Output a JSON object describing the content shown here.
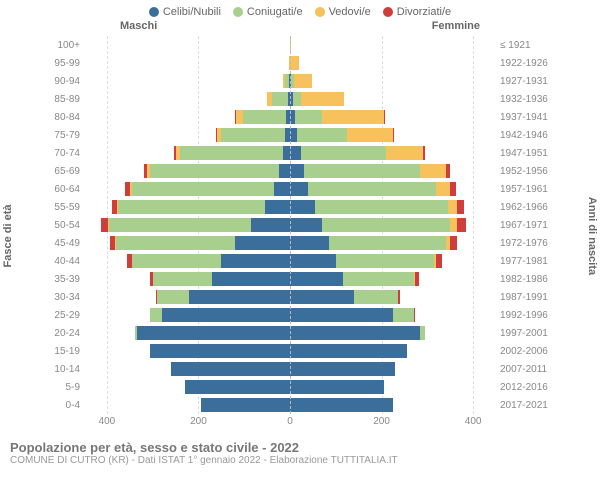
{
  "legend": [
    {
      "label": "Celibi/Nubili",
      "color": "#3b6e9a"
    },
    {
      "label": "Coniugati/e",
      "color": "#a9cf8f"
    },
    {
      "label": "Vedovi/e",
      "color": "#f7c15b"
    },
    {
      "label": "Divorziati/e",
      "color": "#d03d3d"
    }
  ],
  "headers": {
    "male": "Maschi",
    "female": "Femmine"
  },
  "ylabels": {
    "left": "Fasce di età",
    "right": "Anni di nascita"
  },
  "xaxis": {
    "ticks": [
      "400",
      "200",
      "0",
      "200",
      "400"
    ],
    "max": 450
  },
  "colors": {
    "celibe": "#3b6e9a",
    "coniugato": "#a9cf8f",
    "vedovo": "#f7c15b",
    "divorziato": "#d03d3d"
  },
  "rows": [
    {
      "age": "100+",
      "year": "≤ 1921",
      "m": [
        0,
        0,
        0,
        0
      ],
      "f": [
        0,
        0,
        2,
        0
      ]
    },
    {
      "age": "95-99",
      "year": "1922-1926",
      "m": [
        0,
        1,
        2,
        0
      ],
      "f": [
        0,
        1,
        18,
        0
      ]
    },
    {
      "age": "90-94",
      "year": "1927-1931",
      "m": [
        2,
        8,
        5,
        0
      ],
      "f": [
        2,
        6,
        40,
        0
      ]
    },
    {
      "age": "85-89",
      "year": "1932-1936",
      "m": [
        5,
        35,
        10,
        0
      ],
      "f": [
        6,
        18,
        95,
        0
      ]
    },
    {
      "age": "80-84",
      "year": "1937-1941",
      "m": [
        8,
        95,
        15,
        2
      ],
      "f": [
        10,
        60,
        135,
        2
      ]
    },
    {
      "age": "75-79",
      "year": "1942-1946",
      "m": [
        10,
        140,
        10,
        2
      ],
      "f": [
        15,
        110,
        100,
        3
      ]
    },
    {
      "age": "70-74",
      "year": "1947-1951",
      "m": [
        15,
        225,
        10,
        4
      ],
      "f": [
        25,
        185,
        80,
        5
      ]
    },
    {
      "age": "65-69",
      "year": "1952-1956",
      "m": [
        25,
        280,
        8,
        6
      ],
      "f": [
        30,
        255,
        55,
        10
      ]
    },
    {
      "age": "60-64",
      "year": "1957-1961",
      "m": [
        35,
        310,
        5,
        10
      ],
      "f": [
        40,
        280,
        30,
        12
      ]
    },
    {
      "age": "55-59",
      "year": "1962-1966",
      "m": [
        55,
        320,
        3,
        12
      ],
      "f": [
        55,
        290,
        20,
        15
      ]
    },
    {
      "age": "50-54",
      "year": "1967-1971",
      "m": [
        85,
        310,
        2,
        15
      ],
      "f": [
        70,
        280,
        15,
        20
      ]
    },
    {
      "age": "45-49",
      "year": "1972-1976",
      "m": [
        120,
        260,
        2,
        12
      ],
      "f": [
        85,
        255,
        10,
        15
      ]
    },
    {
      "age": "40-44",
      "year": "1977-1981",
      "m": [
        150,
        195,
        1,
        10
      ],
      "f": [
        100,
        215,
        5,
        12
      ]
    },
    {
      "age": "35-39",
      "year": "1982-1986",
      "m": [
        170,
        130,
        0,
        6
      ],
      "f": [
        115,
        155,
        3,
        8
      ]
    },
    {
      "age": "30-34",
      "year": "1987-1991",
      "m": [
        220,
        70,
        0,
        3
      ],
      "f": [
        140,
        95,
        1,
        4
      ]
    },
    {
      "age": "25-29",
      "year": "1992-1996",
      "m": [
        280,
        25,
        0,
        1
      ],
      "f": [
        225,
        45,
        0,
        2
      ]
    },
    {
      "age": "20-24",
      "year": "1997-2001",
      "m": [
        335,
        4,
        0,
        0
      ],
      "f": [
        285,
        10,
        0,
        0
      ]
    },
    {
      "age": "15-19",
      "year": "2002-2006",
      "m": [
        305,
        0,
        0,
        0
      ],
      "f": [
        255,
        0,
        0,
        0
      ]
    },
    {
      "age": "10-14",
      "year": "2007-2011",
      "m": [
        260,
        0,
        0,
        0
      ],
      "f": [
        230,
        0,
        0,
        0
      ]
    },
    {
      "age": "5-9",
      "year": "2012-2016",
      "m": [
        230,
        0,
        0,
        0
      ],
      "f": [
        205,
        0,
        0,
        0
      ]
    },
    {
      "age": "0-4",
      "year": "2017-2021",
      "m": [
        195,
        0,
        0,
        0
      ],
      "f": [
        225,
        0,
        0,
        0
      ]
    }
  ],
  "footer": {
    "title": "Popolazione per età, sesso e stato civile - 2022",
    "sub": "COMUNE DI CUTRO (KR) - Dati ISTAT 1° gennaio 2022 - Elaborazione TUTTITALIA.IT"
  }
}
